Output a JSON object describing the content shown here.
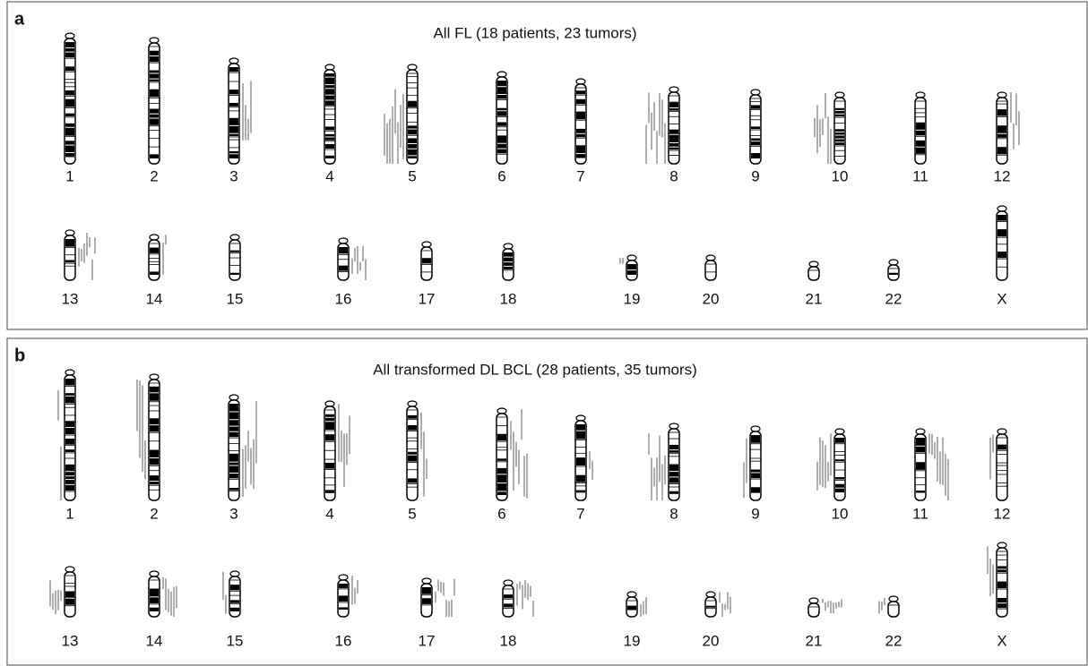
{
  "panels": [
    {
      "label": "a",
      "title": "All FL (18 patients, 23 tumors)",
      "chromosomes": [
        "1",
        "2",
        "3",
        "4",
        "5",
        "6",
        "7",
        "8",
        "9",
        "10",
        "11",
        "12",
        "13",
        "14",
        "15",
        "16",
        "17",
        "18",
        "19",
        "20",
        "21",
        "22",
        "X"
      ]
    },
    {
      "label": "b",
      "title": "All transformed DL BCL (28 patients, 35 tumors)",
      "chromosomes": [
        "1",
        "2",
        "3",
        "4",
        "5",
        "6",
        "7",
        "8",
        "9",
        "10",
        "11",
        "12",
        "13",
        "14",
        "15",
        "16",
        "17",
        "18",
        "19",
        "20",
        "21",
        "22",
        "X"
      ]
    }
  ]
}
